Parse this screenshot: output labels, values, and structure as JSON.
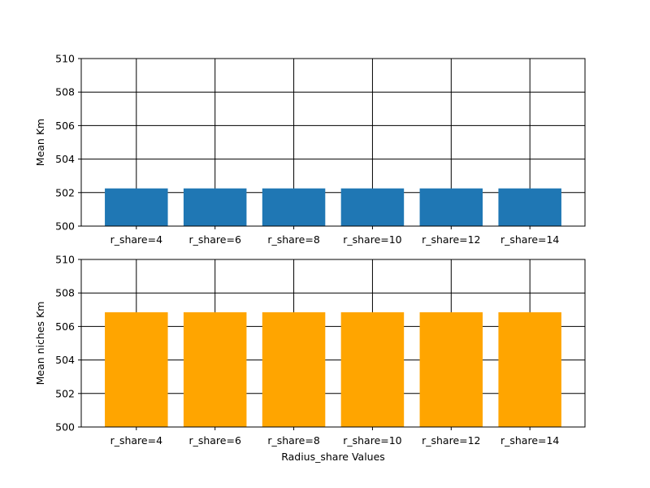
{
  "chart_data": [
    {
      "type": "bar",
      "categories": [
        "r_share=4",
        "r_share=6",
        "r_share=8",
        "r_share=10",
        "r_share=12",
        "r_share=14"
      ],
      "values": [
        502.25,
        502.25,
        502.25,
        502.25,
        502.25,
        502.25
      ],
      "ylabel": "Mean Km",
      "xlabel": "",
      "ylim": [
        500,
        510
      ],
      "yticks": [
        "500",
        "502",
        "504",
        "506",
        "508",
        "510"
      ],
      "grid": true,
      "color": "#1f77b4"
    },
    {
      "type": "bar",
      "categories": [
        "r_share=4",
        "r_share=6",
        "r_share=8",
        "r_share=10",
        "r_share=12",
        "r_share=14"
      ],
      "values": [
        506.85,
        506.85,
        506.85,
        506.85,
        506.85,
        506.85
      ],
      "ylabel": "Mean niches Km",
      "xlabel": "Radius_share Values",
      "ylim": [
        500,
        510
      ],
      "yticks": [
        "500",
        "502",
        "504",
        "506",
        "508",
        "510"
      ],
      "grid": true,
      "color": "#ffa500"
    }
  ]
}
